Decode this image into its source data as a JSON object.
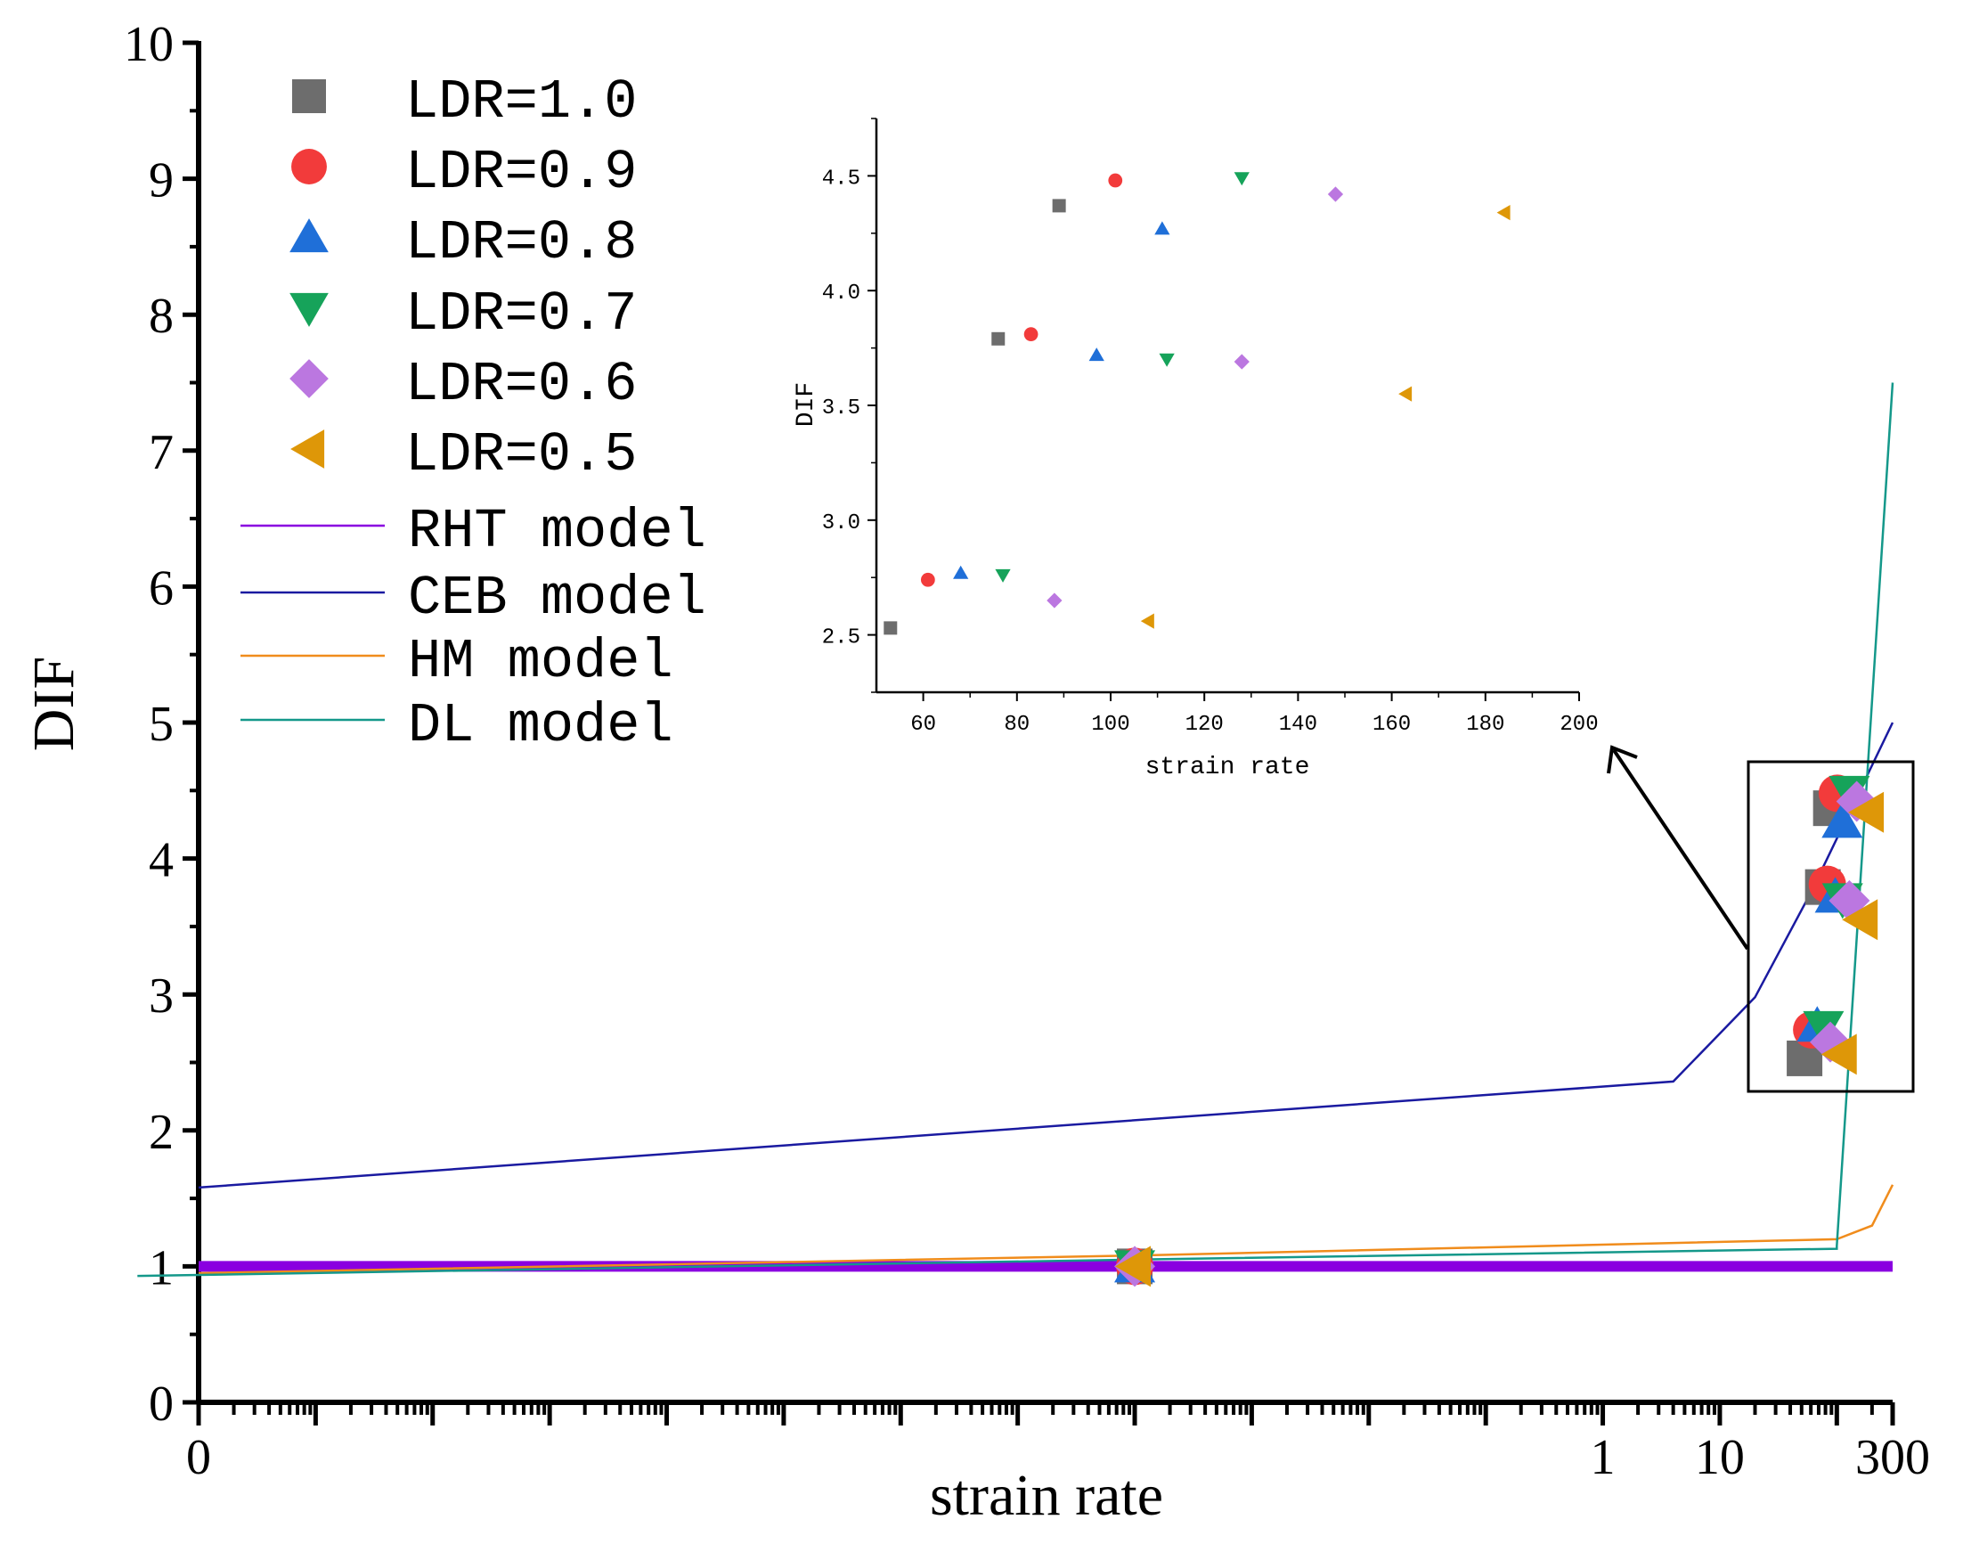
{
  "chart_data": {
    "type": "scatter",
    "title": "",
    "xlabel": "strain rate",
    "ylabel": "DIF",
    "xscale": "log",
    "xlim": [
      1e-12,
      300
    ],
    "ylim": [
      0,
      10
    ],
    "x_tick_labels": [
      {
        "x": 1e-12,
        "label": "0"
      },
      {
        "x": 1,
        "label": "1"
      },
      {
        "x": 10,
        "label": "10"
      },
      {
        "x": 300,
        "label": "300"
      }
    ],
    "y_ticks": [
      0,
      1,
      2,
      3,
      4,
      5,
      6,
      7,
      8,
      9,
      10
    ],
    "series": [
      {
        "name": "LDR=1.0",
        "marker": "square",
        "color": "#6d6d6d",
        "points": [
          [
            0.0001,
            1.0
          ],
          [
            53,
            2.53
          ],
          [
            76,
            3.79
          ],
          [
            89,
            4.37
          ]
        ]
      },
      {
        "name": "LDR=0.9",
        "marker": "circle",
        "color": "#f23b3b",
        "points": [
          [
            0.0001,
            1.0
          ],
          [
            61,
            2.74
          ],
          [
            83,
            3.81
          ],
          [
            101,
            4.48
          ]
        ]
      },
      {
        "name": "LDR=0.8",
        "marker": "triangle-up",
        "color": "#1f6fd8",
        "points": [
          [
            0.0001,
            1.0
          ],
          [
            68,
            2.77
          ],
          [
            97,
            3.72
          ],
          [
            111,
            4.27
          ]
        ]
      },
      {
        "name": "LDR=0.7",
        "marker": "triangle-down",
        "color": "#16a35a",
        "points": [
          [
            0.0001,
            1.0
          ],
          [
            77,
            2.76
          ],
          [
            112,
            3.7
          ],
          [
            128,
            4.49
          ]
        ]
      },
      {
        "name": "LDR=0.6",
        "marker": "diamond",
        "color": "#bb77e0",
        "points": [
          [
            0.0001,
            1.0
          ],
          [
            88,
            2.65
          ],
          [
            128,
            3.69
          ],
          [
            148,
            4.42
          ]
        ]
      },
      {
        "name": "LDR=0.5",
        "marker": "triangle-left",
        "color": "#de9708",
        "points": [
          [
            0.0001,
            1.0
          ],
          [
            108,
            2.56
          ],
          [
            163,
            3.55
          ],
          [
            184,
            4.34
          ]
        ]
      }
    ],
    "lines": [
      {
        "name": "RHT model",
        "color": "#8a00e0",
        "points": [
          [
            1e-12,
            1.0
          ],
          [
            0.0001,
            1.0
          ],
          [
            300,
            1.0
          ]
        ]
      },
      {
        "name": "CEB model",
        "color": "#1a1aa0",
        "points": [
          [
            1e-12,
            1.58
          ],
          [
            4,
            2.36
          ],
          [
            20,
            2.98
          ],
          [
            60,
            3.75
          ],
          [
            300,
            5.0
          ]
        ]
      },
      {
        "name": "HM model",
        "color": "#f08c1c",
        "points": [
          [
            1e-12,
            0.95
          ],
          [
            0.0001,
            1.08
          ],
          [
            100,
            1.2
          ],
          [
            200,
            1.3
          ],
          [
            300,
            1.6
          ]
        ]
      },
      {
        "name": "DL model",
        "color": "#14988a",
        "points": [
          [
            3e-13,
            0.93
          ],
          [
            0.0001,
            1.05
          ],
          [
            100,
            1.13
          ],
          [
            100,
            1.15
          ],
          [
            300,
            7.5
          ]
        ]
      }
    ],
    "inset": {
      "xlabel": "strain rate",
      "ylabel": "DIF",
      "xlim": [
        50,
        200
      ],
      "ylim": [
        2.25,
        4.75
      ],
      "x_ticks": [
        60,
        80,
        100,
        120,
        140,
        160,
        180,
        200
      ],
      "y_ticks": [
        2.5,
        3.0,
        3.5,
        4.0,
        4.5
      ],
      "y_tick_labels": [
        "2.5",
        "3.0",
        "3.5",
        "4.0",
        "4.5"
      ],
      "note": "magnified view of the boxed high-strain-rate region"
    }
  }
}
